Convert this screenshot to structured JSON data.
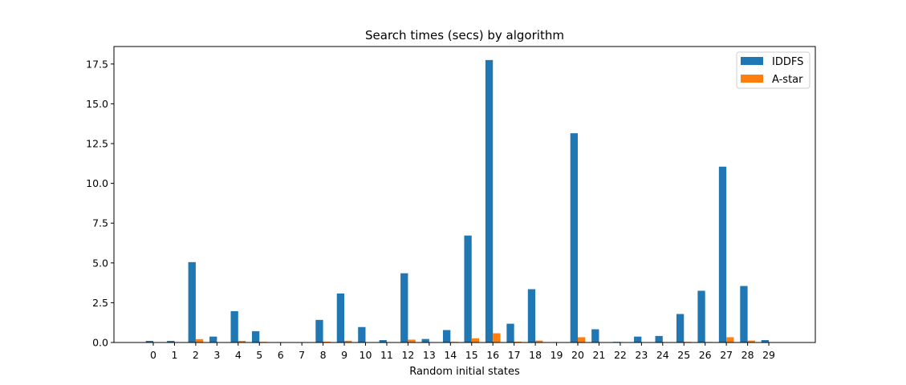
{
  "chart_data": {
    "type": "bar",
    "title": "Search times (secs) by algorithm",
    "xlabel": "Random initial states",
    "ylabel": "",
    "categories": [
      "0",
      "1",
      "2",
      "3",
      "4",
      "5",
      "6",
      "7",
      "8",
      "9",
      "10",
      "11",
      "12",
      "13",
      "14",
      "15",
      "16",
      "17",
      "18",
      "19",
      "20",
      "21",
      "22",
      "23",
      "24",
      "25",
      "26",
      "27",
      "28",
      "29"
    ],
    "ylim": [
      0,
      18.6
    ],
    "yticks": [
      "0.0",
      "2.5",
      "5.0",
      "7.5",
      "10.0",
      "12.5",
      "15.0",
      "17.5"
    ],
    "legend_position": "top-right",
    "grid": false,
    "series": [
      {
        "name": "IDDFS",
        "color": "#1f77b4",
        "values": [
          0.1,
          0.1,
          5.05,
          0.37,
          1.97,
          0.71,
          0.01,
          0.01,
          1.42,
          3.08,
          0.97,
          0.15,
          4.35,
          0.22,
          0.78,
          6.72,
          17.75,
          1.18,
          3.35,
          0.02,
          13.15,
          0.83,
          0.04,
          0.37,
          0.41,
          1.79,
          3.25,
          11.05,
          3.55,
          0.15
        ]
      },
      {
        "name": "A-star",
        "color": "#ff7f0e",
        "values": [
          0.01,
          0.01,
          0.21,
          0.01,
          0.1,
          0.04,
          0.0,
          0.0,
          0.05,
          0.11,
          0.01,
          0.0,
          0.18,
          0.01,
          0.04,
          0.26,
          0.58,
          0.05,
          0.12,
          0.0,
          0.33,
          0.02,
          0.0,
          0.01,
          0.01,
          0.04,
          0.03,
          0.33,
          0.12,
          0.0
        ]
      }
    ]
  }
}
